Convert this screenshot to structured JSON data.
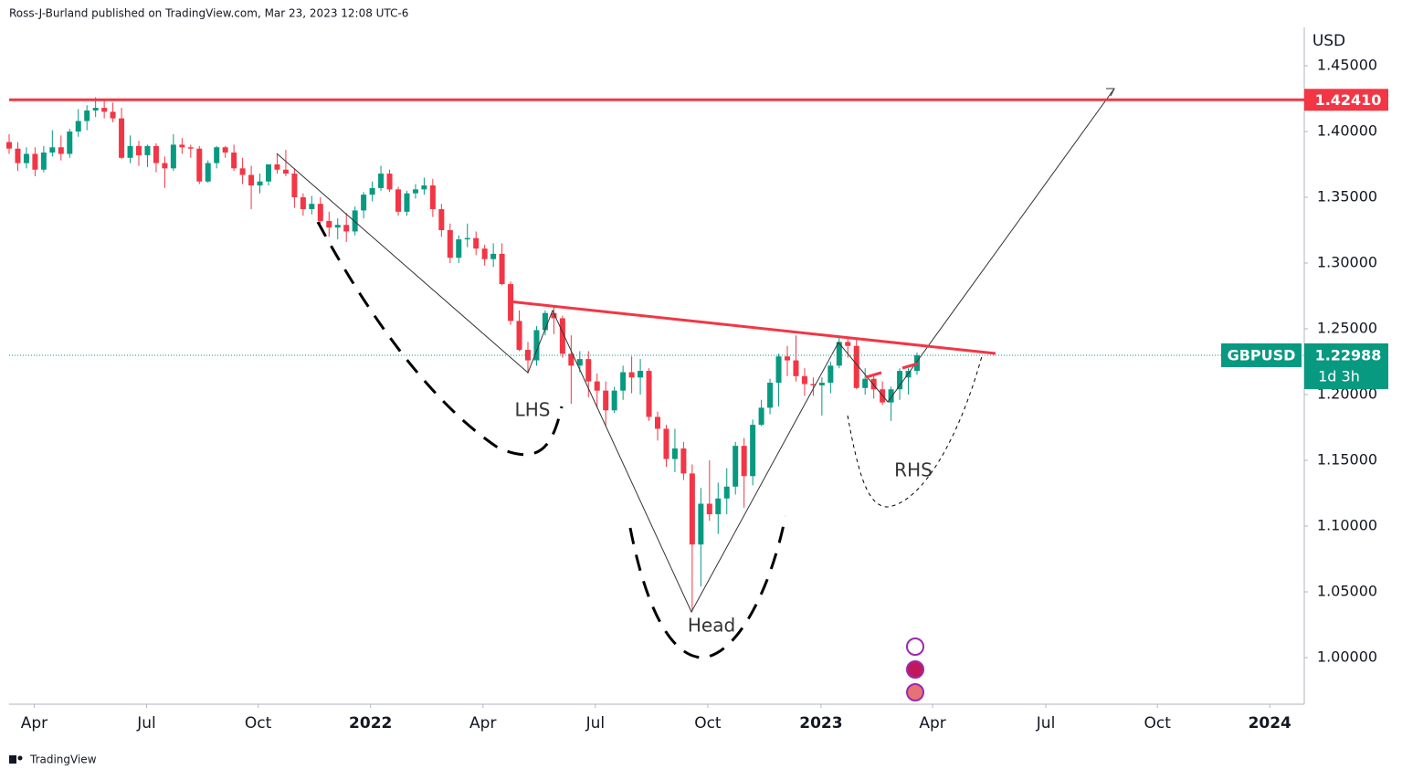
{
  "chart_data": {
    "type": "candlestick",
    "header": "Ross-J-Burland published on TradingView.com, Mar 23, 2023 12:08 UTC-6",
    "currency": "USD",
    "symbol": "GBPUSD",
    "last_price": 1.22988,
    "last_price_label": "1.22988",
    "countdown": "1d 3h",
    "level": 1.4241,
    "level_label": "1.42410",
    "annotations": [
      "LHS",
      "Head",
      "RHS"
    ],
    "footer": "TradingView",
    "up_color": "#089981",
    "down_color": "#f23645",
    "level_color": "#f23645",
    "xlim": [
      0,
      150
    ],
    "xticks": [
      {
        "value": 2.9,
        "label": "Apr"
      },
      {
        "value": 15.9,
        "label": "Jul"
      },
      {
        "value": 28.8,
        "label": "Oct"
      },
      {
        "value": 41.8,
        "label": "2022"
      },
      {
        "value": 54.8,
        "label": "Apr"
      },
      {
        "value": 67.8,
        "label": "Jul"
      },
      {
        "value": 80.8,
        "label": "Oct"
      },
      {
        "value": 93.9,
        "label": "2023"
      },
      {
        "value": 106.8,
        "label": "Apr"
      },
      {
        "value": 119.9,
        "label": "Jul"
      },
      {
        "value": 132.8,
        "label": "Oct"
      },
      {
        "value": 145.8,
        "label": "2024"
      }
    ],
    "ylim": [
      0.96458,
      1.5
    ],
    "yticks": [
      {
        "value": 1.45,
        "label": "1.45000"
      },
      {
        "value": 1.4,
        "label": "1.40000"
      },
      {
        "value": 1.35,
        "label": "1.35000"
      },
      {
        "value": 1.3,
        "label": "1.30000"
      },
      {
        "value": 1.25,
        "label": "1.25000"
      },
      {
        "value": 1.2,
        "label": "1.20000"
      },
      {
        "value": 1.15,
        "label": "1.15000"
      },
      {
        "value": 1.1,
        "label": "1.10000"
      },
      {
        "value": 1.05,
        "label": "1.05000"
      },
      {
        "value": 1.0,
        "label": "1.00000"
      }
    ],
    "ohlc": [
      [
        1.392,
        1.398,
        1.383,
        1.387
      ],
      [
        1.387,
        1.392,
        1.37,
        1.376
      ],
      [
        1.376,
        1.388,
        1.372,
        1.383
      ],
      [
        1.383,
        1.388,
        1.366,
        1.371
      ],
      [
        1.371,
        1.389,
        1.369,
        1.384
      ],
      [
        1.384,
        1.401,
        1.381,
        1.388
      ],
      [
        1.388,
        1.397,
        1.378,
        1.383
      ],
      [
        1.383,
        1.402,
        1.38,
        1.4
      ],
      [
        1.4,
        1.417,
        1.396,
        1.408
      ],
      [
        1.408,
        1.42,
        1.401,
        1.416
      ],
      [
        1.416,
        1.426,
        1.411,
        1.418
      ],
      [
        1.418,
        1.424,
        1.41,
        1.415
      ],
      [
        1.415,
        1.422,
        1.407,
        1.41
      ],
      [
        1.41,
        1.418,
        1.379,
        1.38
      ],
      [
        1.38,
        1.397,
        1.376,
        1.389
      ],
      [
        1.389,
        1.393,
        1.374,
        1.382
      ],
      [
        1.382,
        1.39,
        1.373,
        1.389
      ],
      [
        1.389,
        1.391,
        1.369,
        1.376
      ],
      [
        1.376,
        1.381,
        1.357,
        1.372
      ],
      [
        1.372,
        1.398,
        1.37,
        1.39
      ],
      [
        1.39,
        1.395,
        1.383,
        1.388
      ],
      [
        1.388,
        1.39,
        1.38,
        1.387
      ],
      [
        1.387,
        1.389,
        1.36,
        1.362
      ],
      [
        1.362,
        1.378,
        1.361,
        1.376
      ],
      [
        1.376,
        1.389,
        1.372,
        1.388
      ],
      [
        1.388,
        1.389,
        1.38,
        1.384
      ],
      [
        1.384,
        1.39,
        1.37,
        1.372
      ],
      [
        1.372,
        1.38,
        1.36,
        1.367
      ],
      [
        1.367,
        1.374,
        1.341,
        1.359
      ],
      [
        1.359,
        1.368,
        1.353,
        1.362
      ],
      [
        1.362,
        1.375,
        1.359,
        1.375
      ],
      [
        1.375,
        1.383,
        1.368,
        1.371
      ],
      [
        1.371,
        1.386,
        1.366,
        1.368
      ],
      [
        1.368,
        1.372,
        1.342,
        1.35
      ],
      [
        1.35,
        1.353,
        1.336,
        1.341
      ],
      [
        1.341,
        1.351,
        1.337,
        1.345
      ],
      [
        1.345,
        1.35,
        1.33,
        1.332
      ],
      [
        1.332,
        1.339,
        1.32,
        1.327
      ],
      [
        1.327,
        1.334,
        1.318,
        1.329
      ],
      [
        1.329,
        1.338,
        1.316,
        1.324
      ],
      [
        1.324,
        1.343,
        1.321,
        1.34
      ],
      [
        1.34,
        1.354,
        1.334,
        1.352
      ],
      [
        1.352,
        1.362,
        1.347,
        1.357
      ],
      [
        1.357,
        1.374,
        1.355,
        1.368
      ],
      [
        1.368,
        1.371,
        1.354,
        1.356
      ],
      [
        1.356,
        1.358,
        1.336,
        1.339
      ],
      [
        1.339,
        1.355,
        1.336,
        1.353
      ],
      [
        1.353,
        1.36,
        1.349,
        1.356
      ],
      [
        1.356,
        1.365,
        1.352,
        1.359
      ],
      [
        1.359,
        1.364,
        1.335,
        1.341
      ],
      [
        1.341,
        1.345,
        1.32,
        1.325
      ],
      [
        1.325,
        1.33,
        1.3,
        1.304
      ],
      [
        1.304,
        1.321,
        1.3,
        1.318
      ],
      [
        1.318,
        1.33,
        1.312,
        1.319
      ],
      [
        1.319,
        1.324,
        1.306,
        1.311
      ],
      [
        1.311,
        1.314,
        1.298,
        1.303
      ],
      [
        1.303,
        1.315,
        1.297,
        1.307
      ],
      [
        1.307,
        1.315,
        1.283,
        1.284
      ],
      [
        1.284,
        1.286,
        1.253,
        1.256
      ],
      [
        1.256,
        1.264,
        1.233,
        1.234
      ],
      [
        1.234,
        1.24,
        1.216,
        1.226
      ],
      [
        1.226,
        1.252,
        1.222,
        1.249
      ],
      [
        1.249,
        1.264,
        1.245,
        1.262
      ],
      [
        1.262,
        1.267,
        1.246,
        1.258
      ],
      [
        1.258,
        1.26,
        1.228,
        1.231
      ],
      [
        1.231,
        1.245,
        1.193,
        1.222
      ],
      [
        1.222,
        1.233,
        1.217,
        1.227
      ],
      [
        1.227,
        1.233,
        1.198,
        1.21
      ],
      [
        1.21,
        1.216,
        1.19,
        1.203
      ],
      [
        1.203,
        1.21,
        1.176,
        1.188
      ],
      [
        1.188,
        1.206,
        1.186,
        1.203
      ],
      [
        1.203,
        1.222,
        1.196,
        1.217
      ],
      [
        1.217,
        1.229,
        1.201,
        1.213
      ],
      [
        1.213,
        1.227,
        1.2,
        1.218
      ],
      [
        1.218,
        1.22,
        1.18,
        1.183
      ],
      [
        1.183,
        1.187,
        1.165,
        1.174
      ],
      [
        1.174,
        1.177,
        1.145,
        1.151
      ],
      [
        1.151,
        1.174,
        1.141,
        1.159
      ],
      [
        1.159,
        1.164,
        1.135,
        1.14
      ],
      [
        1.14,
        1.147,
        1.035,
        1.086
      ],
      [
        1.086,
        1.129,
        1.054,
        1.117
      ],
      [
        1.117,
        1.15,
        1.104,
        1.109
      ],
      [
        1.109,
        1.133,
        1.094,
        1.121
      ],
      [
        1.121,
        1.144,
        1.109,
        1.13
      ],
      [
        1.13,
        1.164,
        1.124,
        1.161
      ],
      [
        1.161,
        1.167,
        1.114,
        1.138
      ],
      [
        1.138,
        1.181,
        1.131,
        1.177
      ],
      [
        1.177,
        1.196,
        1.176,
        1.19
      ],
      [
        1.19,
        1.212,
        1.185,
        1.209
      ],
      [
        1.209,
        1.231,
        1.191,
        1.229
      ],
      [
        1.229,
        1.237,
        1.214,
        1.226
      ],
      [
        1.226,
        1.245,
        1.21,
        1.214
      ],
      [
        1.214,
        1.22,
        1.199,
        1.208
      ],
      [
        1.208,
        1.213,
        1.199,
        1.207
      ],
      [
        1.207,
        1.213,
        1.184,
        1.209
      ],
      [
        1.209,
        1.225,
        1.201,
        1.222
      ],
      [
        1.222,
        1.243,
        1.22,
        1.24
      ],
      [
        1.24,
        1.243,
        1.228,
        1.237
      ],
      [
        1.237,
        1.242,
        1.204,
        1.205
      ],
      [
        1.205,
        1.22,
        1.2,
        1.212
      ],
      [
        1.212,
        1.215,
        1.197,
        1.204
      ],
      [
        1.204,
        1.21,
        1.192,
        1.194
      ],
      [
        1.194,
        1.206,
        1.18,
        1.204
      ],
      [
        1.204,
        1.22,
        1.196,
        1.218
      ],
      [
        1.213,
        1.22,
        1.2,
        1.218
      ],
      [
        1.218,
        1.232,
        1.215,
        1.22988
      ]
    ]
  }
}
